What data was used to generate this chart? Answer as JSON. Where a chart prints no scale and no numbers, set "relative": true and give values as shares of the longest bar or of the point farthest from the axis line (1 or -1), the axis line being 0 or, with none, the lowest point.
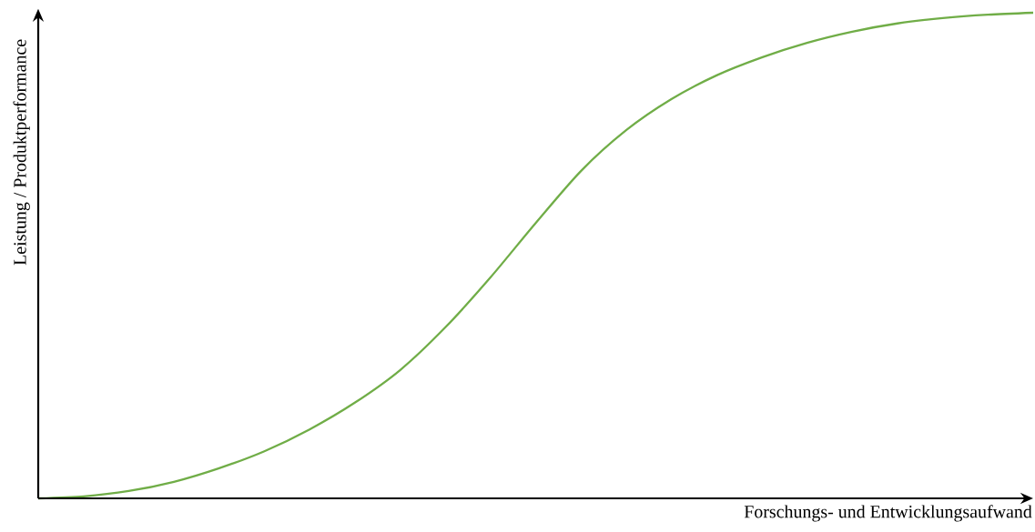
{
  "chart_data": {
    "type": "line",
    "relative": true,
    "xlabel": "Forschungs- und Entwicklungsaufwand",
    "ylabel": "Leistung / Produktperformance",
    "categories": [
      null,
      null,
      null,
      null,
      null,
      null,
      null,
      null,
      null,
      null,
      null,
      null,
      null,
      null,
      null,
      null,
      null,
      null,
      null,
      null,
      null,
      null,
      null
    ],
    "series": [
      {
        "color": "#70ad47",
        "values": [
          0,
          0.004,
          0.015,
          0.034,
          0.062,
          0.097,
          0.142,
          0.197,
          0.264,
          0.352,
          0.455,
          0.567,
          0.674,
          0.758,
          0.822,
          0.871,
          0.908,
          0.938,
          0.961,
          0.978,
          0.989,
          0.996,
          1
        ]
      }
    ]
  }
}
